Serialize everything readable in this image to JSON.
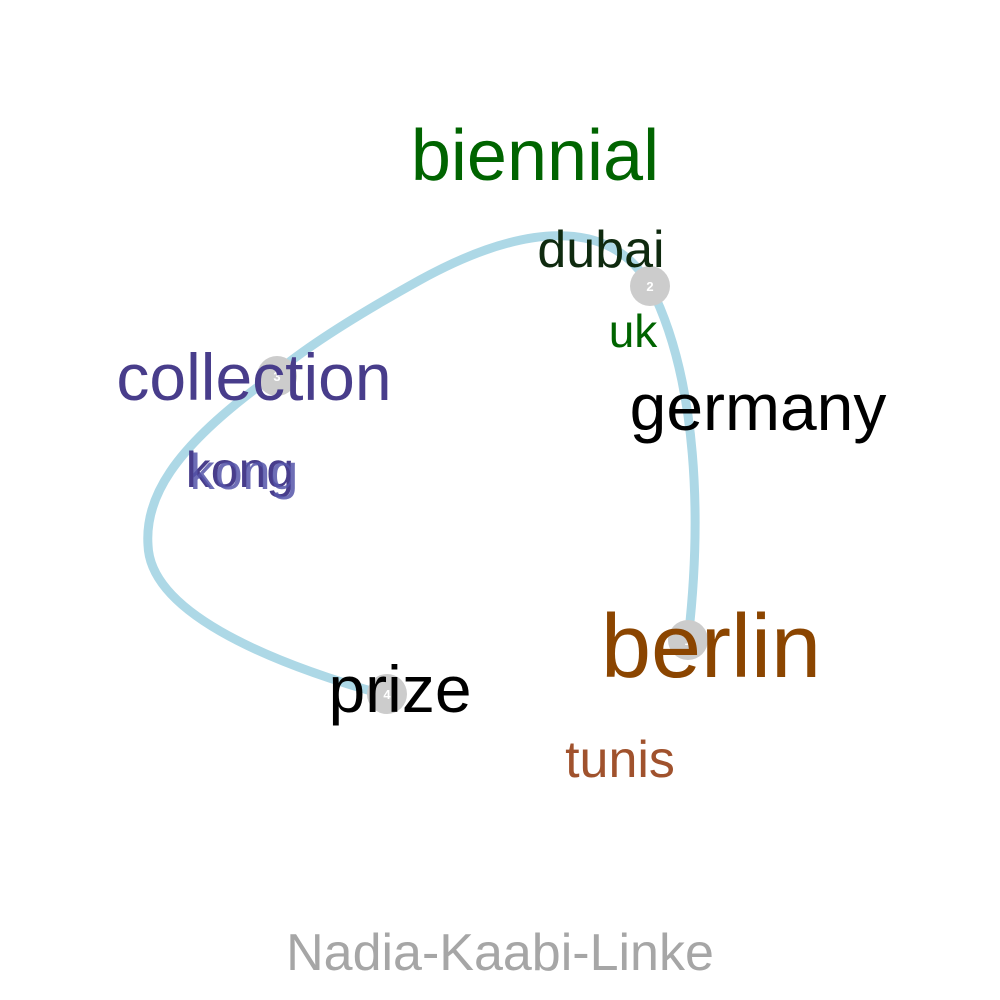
{
  "title": "Nadia-Kaabi-Linke",
  "colors": {
    "path": "#add8e6",
    "marker": "#cccccc",
    "marker_label": "#ffffff",
    "title": "#a6a6a6"
  },
  "path_markers": [
    {
      "label": "1"
    },
    {
      "label": "2"
    },
    {
      "label": "3"
    },
    {
      "label": "4"
    }
  ],
  "words": [
    {
      "text": "biennial",
      "color": "#006400"
    },
    {
      "text": "dubai",
      "color": "#0f2a0f"
    },
    {
      "text": "uk",
      "color": "#006400"
    },
    {
      "text": "germany",
      "color": "#000000"
    },
    {
      "text": "collection",
      "color": "#483d8b"
    },
    {
      "text": "kong",
      "color": "#483d8b"
    },
    {
      "text": "kong",
      "color": "#5555aa"
    },
    {
      "text": "berlin",
      "color": "#8b4500"
    },
    {
      "text": "tunis",
      "color": "#a0522d"
    },
    {
      "text": "prize",
      "color": "#000000"
    }
  ]
}
